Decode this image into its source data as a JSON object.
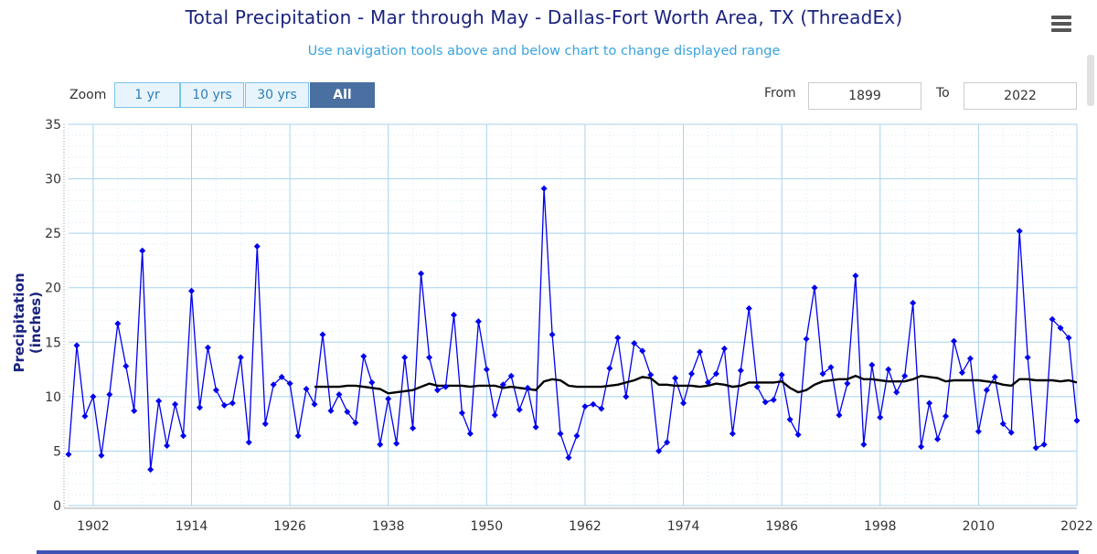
{
  "header": {
    "title": "Total Precipitation - Mar through May - Dallas-Fort Worth Area, TX (ThreadEx)",
    "subtitle": "Use navigation tools above and below chart to change displayed range"
  },
  "zoom": {
    "label": "Zoom",
    "buttons": [
      "1 yr",
      "10 yrs",
      "30 yrs",
      "All"
    ],
    "active": "All"
  },
  "range": {
    "from_label": "From",
    "from_value": "1899",
    "to_label": "To",
    "to_value": "2022"
  },
  "icons": {
    "menu": "hamburger-menu-icon"
  },
  "colors": {
    "series": "#0000ee",
    "normal": "#000000",
    "grid_major": "#a9d2ee",
    "grid_minor": "#d8ebf8",
    "title": "#1a237e",
    "subtitle": "#3aa3dd",
    "zoom_active": "#4a6fa1"
  },
  "chart_data": {
    "type": "line",
    "title": "Total Precipitation - Mar through May - Dallas-Fort Worth Area, TX (ThreadEx)",
    "subtitle": "Use navigation tools above and below chart to change displayed range",
    "xlabel": "",
    "ylabel": "Precipitation (inches)",
    "xlim": [
      1899,
      2022
    ],
    "ylim": [
      0,
      35
    ],
    "yticks": [
      0,
      5,
      10,
      15,
      20,
      25,
      30,
      35
    ],
    "xticks": [
      1902,
      1914,
      1926,
      1938,
      1950,
      1962,
      1974,
      1986,
      1998,
      2010,
      2022
    ],
    "grid": true,
    "legend": "none",
    "series": [
      {
        "x": [
          1899,
          1900,
          1901,
          1902,
          1903,
          1904,
          1905,
          1906,
          1907,
          1908,
          1909,
          1910,
          1911,
          1912,
          1913,
          1914,
          1915,
          1916,
          1917,
          1918,
          1919,
          1920,
          1921,
          1922,
          1923,
          1924,
          1925,
          1926,
          1927,
          1928,
          1929,
          1930,
          1931,
          1932,
          1933,
          1934,
          1935,
          1936,
          1937,
          1938,
          1939,
          1940,
          1941,
          1942,
          1943,
          1944,
          1945,
          1946,
          1947,
          1948,
          1949,
          1950,
          1951,
          1952,
          1953,
          1954,
          1955,
          1956,
          1957,
          1958,
          1959,
          1960,
          1961,
          1962,
          1963,
          1964,
          1965,
          1966,
          1967,
          1968,
          1969,
          1970,
          1971,
          1972,
          1973,
          1974,
          1975,
          1976,
          1977,
          1978,
          1979,
          1980,
          1981,
          1982,
          1983,
          1984,
          1985,
          1986,
          1987,
          1988,
          1989,
          1990,
          1991,
          1992,
          1993,
          1994,
          1995,
          1996,
          1997,
          1998,
          1999,
          2000,
          2001,
          2002,
          2003,
          2004,
          2005,
          2006,
          2007,
          2008,
          2009,
          2010,
          2011,
          2012,
          2013,
          2014,
          2015,
          2016,
          2017,
          2018,
          2019,
          2020,
          2021,
          2022
        ],
        "values": [
          4.7,
          14.7,
          8.2,
          10.0,
          4.6,
          10.2,
          16.7,
          12.8,
          8.7,
          23.4,
          3.3,
          9.6,
          5.5,
          9.3,
          6.4,
          19.7,
          9.0,
          14.5,
          10.6,
          9.2,
          9.4,
          13.6,
          5.8,
          23.8,
          7.5,
          11.1,
          11.8,
          11.2,
          6.4,
          10.7,
          9.3,
          15.7,
          8.7,
          10.2,
          8.6,
          7.6,
          13.7,
          11.3,
          5.6,
          9.8,
          5.7,
          13.6,
          7.1,
          21.3,
          13.6,
          10.6,
          10.9,
          17.5,
          8.5,
          6.6,
          16.9,
          12.5,
          8.3,
          11.1,
          11.9,
          8.8,
          10.8,
          7.2,
          29.1,
          15.7,
          6.6,
          4.4,
          6.4,
          9.1,
          9.3,
          8.9,
          12.6,
          15.4,
          10.0,
          14.9,
          14.2,
          12.0,
          5.0,
          5.8,
          11.7,
          9.4,
          12.1,
          14.1,
          11.3,
          12.1,
          14.4,
          6.6,
          12.4,
          18.1,
          10.9,
          9.5,
          9.7,
          12.0,
          7.9,
          6.5,
          15.3,
          20.0,
          12.1,
          12.7,
          8.3,
          11.2,
          21.1,
          5.6,
          12.9,
          8.1,
          12.5,
          10.4,
          11.9,
          18.6,
          5.4,
          9.4,
          6.1,
          8.2,
          15.1,
          12.2,
          13.5,
          6.8,
          10.6,
          11.8,
          7.5,
          6.7,
          25.2,
          13.6,
          5.3,
          5.6,
          17.1,
          16.3,
          15.4,
          7.8
        ]
      },
      {
        "x": [
          1929,
          1930,
          1931,
          1932,
          1933,
          1934,
          1935,
          1936,
          1937,
          1938,
          1939,
          1940,
          1941,
          1942,
          1943,
          1944,
          1945,
          1946,
          1947,
          1948,
          1949,
          1950,
          1951,
          1952,
          1953,
          1954,
          1955,
          1956,
          1957,
          1958,
          1959,
          1960,
          1961,
          1962,
          1963,
          1964,
          1965,
          1966,
          1967,
          1968,
          1969,
          1970,
          1971,
          1972,
          1973,
          1974,
          1975,
          1976,
          1977,
          1978,
          1979,
          1980,
          1981,
          1982,
          1983,
          1984,
          1985,
          1986,
          1987,
          1988,
          1989,
          1990,
          1991,
          1992,
          1993,
          1994,
          1995,
          1996,
          1997,
          1998,
          1999,
          2000,
          2001,
          2002,
          2003,
          2004,
          2005,
          2006,
          2007,
          2008,
          2009,
          2010,
          2011,
          2012,
          2013,
          2014,
          2015,
          2016,
          2017,
          2018,
          2019,
          2020,
          2021,
          2022
        ],
        "values": [
          10.9,
          10.9,
          10.9,
          10.9,
          11.0,
          11.0,
          10.9,
          10.8,
          10.7,
          10.3,
          10.4,
          10.5,
          10.6,
          10.9,
          11.2,
          11.0,
          11.0,
          11.0,
          11.0,
          10.9,
          11.0,
          11.0,
          11.0,
          10.8,
          10.9,
          10.8,
          10.7,
          10.6,
          11.4,
          11.6,
          11.5,
          11.0,
          10.9,
          10.9,
          10.9,
          10.9,
          11.0,
          11.1,
          11.3,
          11.5,
          11.8,
          11.7,
          11.1,
          11.1,
          11.0,
          11.0,
          11.0,
          10.9,
          11.0,
          11.2,
          11.1,
          10.9,
          11.0,
          11.3,
          11.3,
          11.3,
          11.3,
          11.4,
          10.8,
          10.4,
          10.6,
          11.1,
          11.4,
          11.5,
          11.6,
          11.6,
          11.9,
          11.6,
          11.6,
          11.5,
          11.4,
          11.4,
          11.4,
          11.6,
          11.9,
          11.8,
          11.7,
          11.4,
          11.5,
          11.5,
          11.5,
          11.5,
          11.4,
          11.3,
          11.1,
          11.0,
          11.6,
          11.6,
          11.5,
          11.5,
          11.5,
          11.4,
          11.5,
          11.3
        ]
      }
    ]
  }
}
